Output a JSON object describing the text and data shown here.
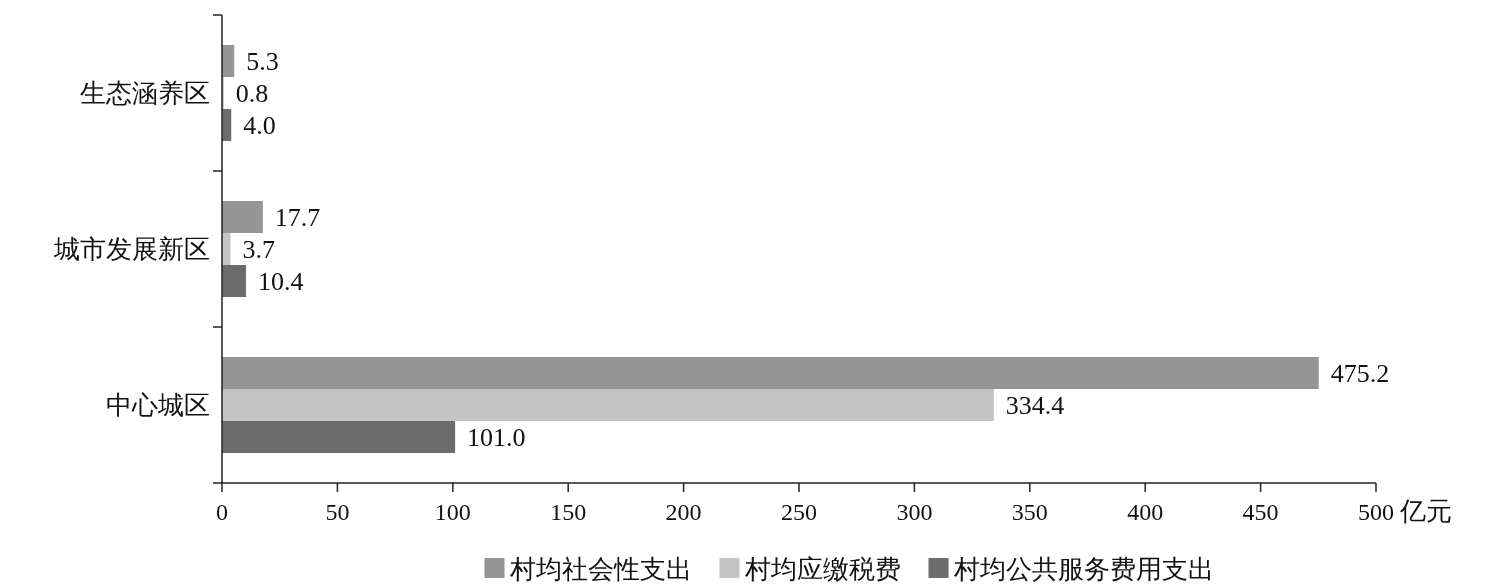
{
  "chart_data": {
    "type": "bar",
    "orientation": "horizontal",
    "xlabel": "亿元",
    "categories": [
      "生态涵养区",
      "城市发展新区",
      "中心城区"
    ],
    "series": [
      {
        "name": "村均社会性支出",
        "color": "#959595",
        "values": [
          5.3,
          17.7,
          475.2
        ],
        "value_labels": [
          "5.3",
          "17.7",
          "475.2"
        ]
      },
      {
        "name": "村均应缴税费",
        "color": "#c4c4c4",
        "values": [
          0.8,
          3.7,
          334.4
        ],
        "value_labels": [
          "0.8",
          "3.7",
          "334.4"
        ]
      },
      {
        "name": "村均公共服务费用支出",
        "color": "#6c6c6c",
        "values": [
          4.0,
          10.4,
          101.0
        ],
        "value_labels": [
          "4.0",
          "10.4",
          "101.0"
        ]
      }
    ],
    "xlim": [
      0,
      500
    ],
    "xticks": [
      0,
      50,
      100,
      150,
      200,
      250,
      300,
      350,
      400,
      450,
      500
    ],
    "grid": false,
    "legend": "bottom"
  }
}
